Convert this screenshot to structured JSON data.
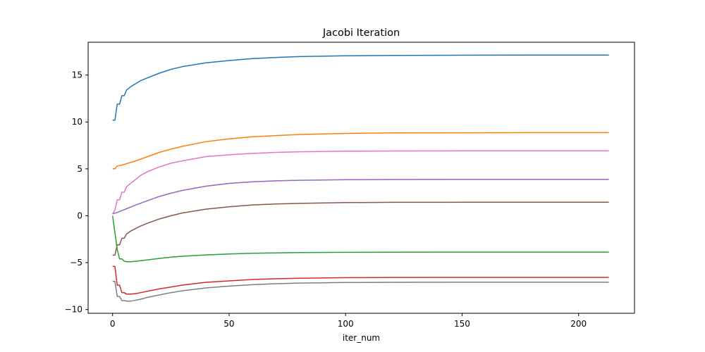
{
  "chart_data": {
    "type": "line",
    "title": "Jacobi Iteration",
    "xlabel": "iter_num",
    "ylabel": "",
    "xlim": [
      -10.5,
      224
    ],
    "ylim": [
      -10.4,
      18.5
    ],
    "xticks": [
      0,
      50,
      100,
      150,
      200
    ],
    "yticks": [
      -10,
      -5,
      0,
      5,
      10,
      15
    ],
    "grid": false,
    "legend": "none",
    "x_max": 213,
    "series": [
      {
        "color": "#1f77b4",
        "points": [
          [
            0,
            10.2
          ],
          [
            1,
            10.2
          ],
          [
            2,
            11.9
          ],
          [
            3,
            11.9
          ],
          [
            4,
            12.8
          ],
          [
            5,
            12.8
          ],
          [
            6,
            13.4
          ],
          [
            8,
            13.8
          ],
          [
            10,
            14.1
          ],
          [
            12,
            14.4
          ],
          [
            15,
            14.7
          ],
          [
            20,
            15.2
          ],
          [
            25,
            15.6
          ],
          [
            30,
            15.9
          ],
          [
            40,
            16.3
          ],
          [
            50,
            16.55
          ],
          [
            60,
            16.75
          ],
          [
            70,
            16.88
          ],
          [
            80,
            16.97
          ],
          [
            100,
            17.05
          ],
          [
            120,
            17.1
          ],
          [
            150,
            17.12
          ],
          [
            180,
            17.13
          ],
          [
            213,
            17.13
          ]
        ]
      },
      {
        "color": "#ff7f0e",
        "points": [
          [
            0,
            5.0
          ],
          [
            1,
            5.0
          ],
          [
            2,
            5.3
          ],
          [
            4,
            5.4
          ],
          [
            6,
            5.55
          ],
          [
            8,
            5.7
          ],
          [
            10,
            5.85
          ],
          [
            15,
            6.3
          ],
          [
            20,
            6.75
          ],
          [
            25,
            7.1
          ],
          [
            30,
            7.4
          ],
          [
            40,
            7.9
          ],
          [
            50,
            8.2
          ],
          [
            60,
            8.42
          ],
          [
            70,
            8.55
          ],
          [
            80,
            8.66
          ],
          [
            100,
            8.78
          ],
          [
            120,
            8.83
          ],
          [
            150,
            8.85
          ],
          [
            180,
            8.86
          ],
          [
            213,
            8.86
          ]
        ]
      },
      {
        "color": "#e377c2",
        "points": [
          [
            0,
            0.2
          ],
          [
            1,
            0.6
          ],
          [
            2,
            1.7
          ],
          [
            3,
            1.7
          ],
          [
            4,
            2.5
          ],
          [
            5,
            2.5
          ],
          [
            6,
            3.1
          ],
          [
            8,
            3.5
          ],
          [
            10,
            3.9
          ],
          [
            12,
            4.3
          ],
          [
            15,
            4.7
          ],
          [
            20,
            5.2
          ],
          [
            25,
            5.6
          ],
          [
            30,
            5.85
          ],
          [
            40,
            6.3
          ],
          [
            50,
            6.5
          ],
          [
            60,
            6.65
          ],
          [
            70,
            6.75
          ],
          [
            80,
            6.82
          ],
          [
            100,
            6.88
          ],
          [
            120,
            6.9
          ],
          [
            150,
            6.92
          ],
          [
            213,
            6.92
          ]
        ]
      },
      {
        "color": "#9467bd",
        "points": [
          [
            0,
            0.2
          ],
          [
            2,
            0.35
          ],
          [
            4,
            0.55
          ],
          [
            6,
            0.75
          ],
          [
            8,
            0.95
          ],
          [
            10,
            1.15
          ],
          [
            15,
            1.6
          ],
          [
            20,
            2.05
          ],
          [
            25,
            2.4
          ],
          [
            30,
            2.7
          ],
          [
            40,
            3.15
          ],
          [
            50,
            3.45
          ],
          [
            60,
            3.62
          ],
          [
            70,
            3.72
          ],
          [
            80,
            3.78
          ],
          [
            100,
            3.84
          ],
          [
            120,
            3.86
          ],
          [
            150,
            3.87
          ],
          [
            213,
            3.87
          ]
        ]
      },
      {
        "color": "#8c564b",
        "points": [
          [
            0,
            -4.2
          ],
          [
            1,
            -4.2
          ],
          [
            2,
            -3.1
          ],
          [
            3,
            -3.1
          ],
          [
            4,
            -2.4
          ],
          [
            5,
            -2.4
          ],
          [
            6,
            -1.95
          ],
          [
            8,
            -1.6
          ],
          [
            10,
            -1.35
          ],
          [
            12,
            -1.1
          ],
          [
            15,
            -0.8
          ],
          [
            20,
            -0.35
          ],
          [
            25,
            0.0
          ],
          [
            30,
            0.3
          ],
          [
            40,
            0.7
          ],
          [
            50,
            0.95
          ],
          [
            60,
            1.15
          ],
          [
            70,
            1.25
          ],
          [
            80,
            1.32
          ],
          [
            100,
            1.4
          ],
          [
            120,
            1.43
          ],
          [
            150,
            1.44
          ],
          [
            213,
            1.44
          ]
        ]
      },
      {
        "color": "#2ca02c",
        "points": [
          [
            0,
            0.0
          ],
          [
            1,
            -1.8
          ],
          [
            2,
            -3.6
          ],
          [
            3,
            -4.6
          ],
          [
            4,
            -4.6
          ],
          [
            5,
            -4.85
          ],
          [
            6,
            -4.9
          ],
          [
            8,
            -4.9
          ],
          [
            10,
            -4.85
          ],
          [
            15,
            -4.7
          ],
          [
            20,
            -4.55
          ],
          [
            25,
            -4.42
          ],
          [
            30,
            -4.32
          ],
          [
            40,
            -4.18
          ],
          [
            50,
            -4.08
          ],
          [
            60,
            -4.0
          ],
          [
            70,
            -3.96
          ],
          [
            80,
            -3.93
          ],
          [
            100,
            -3.9
          ],
          [
            120,
            -3.89
          ],
          [
            150,
            -3.88
          ],
          [
            213,
            -3.88
          ]
        ]
      },
      {
        "color": "#d62728",
        "points": [
          [
            0,
            -5.4
          ],
          [
            1,
            -5.4
          ],
          [
            2,
            -7.4
          ],
          [
            3,
            -7.4
          ],
          [
            4,
            -8.2
          ],
          [
            5,
            -8.2
          ],
          [
            6,
            -8.35
          ],
          [
            8,
            -8.35
          ],
          [
            10,
            -8.3
          ],
          [
            12,
            -8.2
          ],
          [
            15,
            -8.05
          ],
          [
            20,
            -7.8
          ],
          [
            25,
            -7.6
          ],
          [
            30,
            -7.4
          ],
          [
            40,
            -7.1
          ],
          [
            50,
            -6.95
          ],
          [
            60,
            -6.8
          ],
          [
            70,
            -6.72
          ],
          [
            80,
            -6.66
          ],
          [
            100,
            -6.6
          ],
          [
            120,
            -6.58
          ],
          [
            150,
            -6.57
          ],
          [
            213,
            -6.57
          ]
        ]
      },
      {
        "color": "#7f7f7f",
        "points": [
          [
            0,
            -7.0
          ],
          [
            1,
            -7.0
          ],
          [
            2,
            -8.6
          ],
          [
            3,
            -8.6
          ],
          [
            4,
            -9.05
          ],
          [
            5,
            -9.05
          ],
          [
            6,
            -9.1
          ],
          [
            8,
            -9.1
          ],
          [
            10,
            -9.0
          ],
          [
            12,
            -8.9
          ],
          [
            15,
            -8.7
          ],
          [
            20,
            -8.45
          ],
          [
            25,
            -8.2
          ],
          [
            30,
            -8.0
          ],
          [
            40,
            -7.7
          ],
          [
            50,
            -7.5
          ],
          [
            60,
            -7.35
          ],
          [
            70,
            -7.25
          ],
          [
            80,
            -7.18
          ],
          [
            100,
            -7.12
          ],
          [
            120,
            -7.1
          ],
          [
            150,
            -7.09
          ],
          [
            213,
            -7.09
          ]
        ]
      }
    ]
  }
}
